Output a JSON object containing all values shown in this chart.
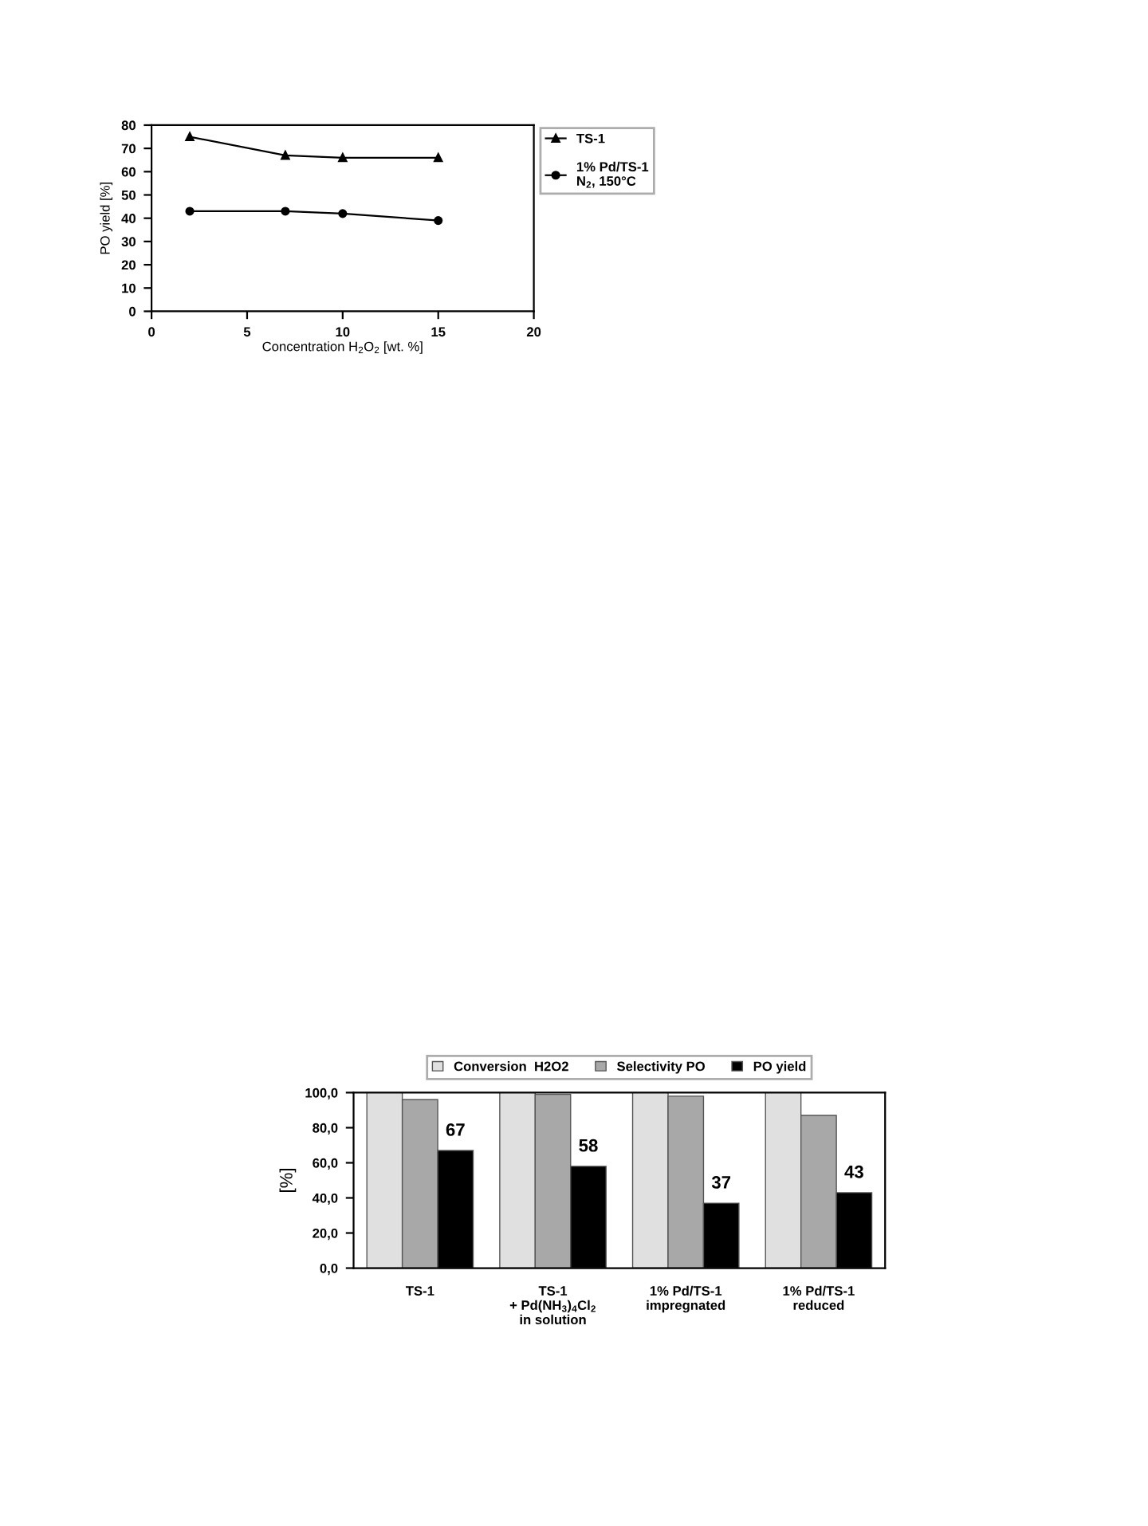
{
  "chart_data": [
    {
      "type": "line",
      "xlabel": "Concentration H$_{2}$O$_{2}$ [wt. %]",
      "ylabel": "PO yield [%]",
      "xlim": [
        0,
        20
      ],
      "xticks": [
        0,
        5,
        10,
        15,
        20
      ],
      "ylim": [
        0,
        80
      ],
      "yticks": [
        0,
        10,
        20,
        30,
        40,
        50,
        60,
        70,
        80
      ],
      "legend": "right",
      "grid": false,
      "line_style": "solid",
      "series": [
        {
          "name": "TS-1",
          "color": "#000000",
          "marker": "triangle",
          "x": [
            2,
            7,
            10,
            15
          ],
          "values": [
            75,
            67,
            66,
            66
          ]
        },
        {
          "name": "1% Pd/TS-1\nN$_{2}$, 150°C",
          "color": "#000000",
          "marker": "circle",
          "x": [
            2,
            7,
            10,
            15
          ],
          "values": [
            43,
            43,
            42,
            39
          ]
        }
      ]
    },
    {
      "type": "bar",
      "ylabel": "[%]",
      "categories": [
        "TS-1",
        "TS-1\n+ Pd(NH$_{3}$)$_{4}$Cl$_{2}$\nin solution",
        "1% Pd/TS-1\nimpregnated",
        "1% Pd/TS-1\nreduced"
      ],
      "ylim": [
        0,
        100
      ],
      "yticks": [
        {
          "value": 0,
          "label": "0,0"
        },
        {
          "value": 20,
          "label": "20,0"
        },
        {
          "value": 40,
          "label": "40,0"
        },
        {
          "value": 60,
          "label": "60,0"
        },
        {
          "value": 80,
          "label": "80,0"
        },
        {
          "value": 100,
          "label": "100,0"
        }
      ],
      "legend": "top",
      "grid": false,
      "series": [
        {
          "name": "Conversion  H2O2",
          "color": "#e0e0e0",
          "values": [
            100,
            100,
            100,
            100
          ]
        },
        {
          "name": "Selectivity PO",
          "color": "#a8a8a8",
          "values": [
            96,
            99,
            98,
            87
          ]
        },
        {
          "name": "PO yield",
          "color": "#000000",
          "values": [
            67,
            58,
            37,
            43
          ],
          "value_labels": [
            "67",
            "58",
            "37",
            "43"
          ]
        }
      ]
    }
  ]
}
